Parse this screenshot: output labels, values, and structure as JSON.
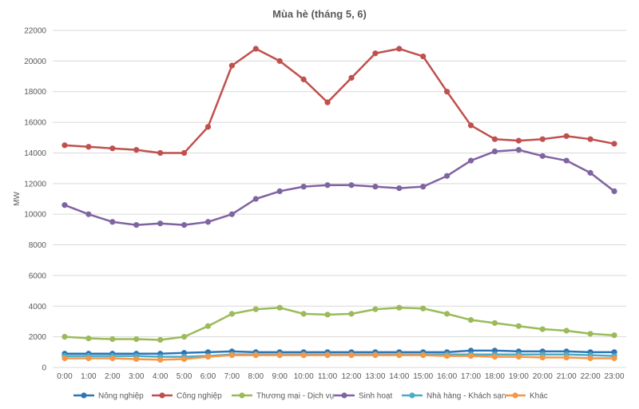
{
  "chart_data": {
    "type": "line",
    "title": "Mùa hè (tháng 5, 6)",
    "ylabel": "MW",
    "xlabel": "",
    "ylim": [
      0,
      22000
    ],
    "ytick_step": 2000,
    "yticks": [
      "0",
      "2000",
      "4000",
      "6000",
      "8000",
      "10000",
      "12000",
      "14000",
      "16000",
      "18000",
      "20000",
      "22000"
    ],
    "grid": true,
    "legend_position": "bottom",
    "categories": [
      "0:00",
      "1:00",
      "2:00",
      "3:00",
      "4:00",
      "5:00",
      "6:00",
      "7:00",
      "8:00",
      "9:00",
      "10:00",
      "11:00",
      "12:00",
      "13:00",
      "14:00",
      "15:00",
      "16:00",
      "17:00",
      "18:00",
      "19:00",
      "20:00",
      "21:00",
      "22:00",
      "23:00"
    ],
    "series": [
      {
        "name": "Nông nghiệp",
        "color": "#2e75b6",
        "values": [
          900,
          900,
          900,
          900,
          900,
          950,
          1000,
          1050,
          1000,
          1000,
          1000,
          1000,
          1000,
          1000,
          1000,
          1000,
          1000,
          1100,
          1100,
          1050,
          1050,
          1050,
          1000,
          1000
        ]
      },
      {
        "name": "Công nghiệp",
        "color": "#c0504d",
        "values": [
          14500,
          14400,
          14300,
          14200,
          14000,
          14000,
          15700,
          19700,
          20800,
          20000,
          18800,
          17300,
          18900,
          20500,
          20800,
          20300,
          18000,
          15800,
          14900,
          14800,
          14900,
          15100,
          14900,
          14600
        ]
      },
      {
        "name": "Thương mại - Dịch vụ",
        "color": "#9bbb59",
        "values": [
          2000,
          1900,
          1850,
          1850,
          1800,
          2000,
          2700,
          3500,
          3800,
          3900,
          3500,
          3450,
          3500,
          3800,
          3900,
          3850,
          3500,
          3100,
          2900,
          2700,
          2500,
          2400,
          2200,
          2100
        ]
      },
      {
        "name": "Sinh hoạt",
        "color": "#8064a2",
        "values": [
          10600,
          10000,
          9500,
          9300,
          9400,
          9300,
          9500,
          10000,
          11000,
          11500,
          11800,
          11900,
          11900,
          11800,
          11700,
          11800,
          12500,
          13500,
          14100,
          14200,
          13800,
          13500,
          12700,
          11500
        ]
      },
      {
        "name": "Nhà hàng - Khách sạn",
        "color": "#4bacc6",
        "values": [
          750,
          750,
          750,
          750,
          700,
          700,
          750,
          850,
          850,
          850,
          850,
          850,
          850,
          850,
          850,
          850,
          850,
          850,
          850,
          850,
          850,
          850,
          800,
          750
        ]
      },
      {
        "name": "Khác",
        "color": "#f79646",
        "values": [
          600,
          600,
          600,
          550,
          500,
          550,
          700,
          800,
          800,
          800,
          800,
          800,
          800,
          800,
          800,
          800,
          750,
          750,
          700,
          700,
          650,
          650,
          600,
          600
        ]
      }
    ]
  }
}
